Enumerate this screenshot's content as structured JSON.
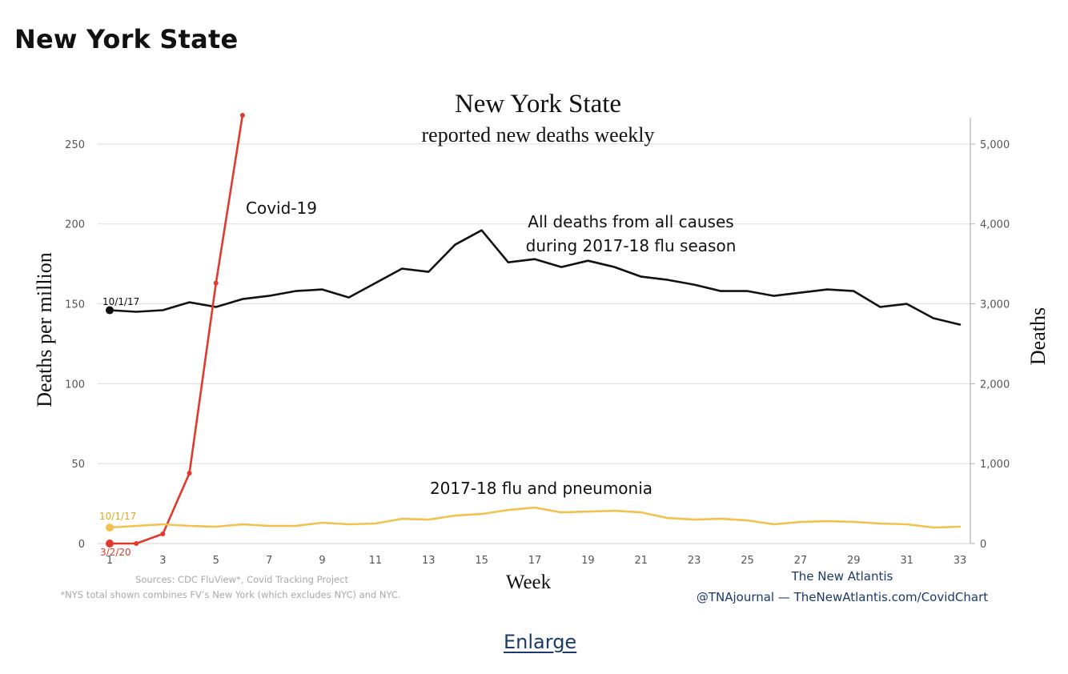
{
  "page": {
    "heading": "New York State",
    "enlarge_link": "Enlarge"
  },
  "chart_data": {
    "type": "line",
    "title": "New York State",
    "subtitle": "reported new deaths weekly",
    "xlabel": "Week",
    "ylabel_left": "Deaths per million",
    "ylabel_right": "Deaths",
    "xticks": [
      1,
      3,
      5,
      7,
      9,
      11,
      13,
      15,
      17,
      19,
      21,
      23,
      25,
      27,
      29,
      31,
      33
    ],
    "xlim": [
      1,
      33
    ],
    "ylim_left": [
      0,
      270
    ],
    "yticks_left": [
      0,
      50,
      100,
      150,
      200,
      250
    ],
    "ylim_right": [
      0,
      5400
    ],
    "yticks_right": [
      {
        "value": 0,
        "label": "0"
      },
      {
        "value": 1000,
        "label": "1,000"
      },
      {
        "value": 2000,
        "label": "2,000"
      },
      {
        "value": 3000,
        "label": "3,000"
      },
      {
        "value": 4000,
        "label": "4,000"
      },
      {
        "value": 5000,
        "label": "5,000"
      }
    ],
    "grid": true,
    "series": [
      {
        "name": "All deaths from all causes during 2017-18 flu season",
        "label_lines": [
          "All deaths from all causes",
          "during 2017-18 flu season"
        ],
        "color": "#111111",
        "start_label": "10/1/17",
        "x": [
          1,
          2,
          3,
          4,
          5,
          6,
          7,
          8,
          9,
          10,
          11,
          12,
          13,
          14,
          15,
          16,
          17,
          18,
          19,
          20,
          21,
          22,
          23,
          24,
          25,
          26,
          27,
          28,
          29,
          30,
          31,
          32,
          33
        ],
        "y": [
          146,
          145,
          146,
          151,
          148,
          153,
          155,
          158,
          159,
          154,
          163,
          172,
          170,
          187,
          196,
          176,
          178,
          173,
          177,
          173,
          167,
          165,
          162,
          158,
          158,
          155,
          157,
          159,
          158,
          148,
          150,
          141,
          137
        ]
      },
      {
        "name": "Covid-19",
        "color": "#e03a2f",
        "start_label": "3/2/20",
        "x": [
          1,
          2,
          3,
          4,
          5,
          6
        ],
        "y": [
          0,
          0,
          6,
          44,
          163,
          268
        ]
      },
      {
        "name": "2017-18 flu and pneumonia",
        "color": "#f2c14e",
        "start_label": "10/1/17",
        "x": [
          1,
          2,
          3,
          4,
          5,
          6,
          7,
          8,
          9,
          10,
          11,
          12,
          13,
          14,
          15,
          16,
          17,
          18,
          19,
          20,
          21,
          22,
          23,
          24,
          25,
          26,
          27,
          28,
          29,
          30,
          31,
          32,
          33
        ],
        "y": [
          10,
          11,
          12,
          11,
          10.5,
          12,
          11,
          11,
          13,
          12,
          12.5,
          15.5,
          15,
          17.5,
          18.5,
          21,
          22.5,
          19.5,
          20,
          20.5,
          19.5,
          16,
          15,
          15.5,
          14.5,
          12,
          13.5,
          14,
          13.5,
          12.5,
          12,
          10,
          10.5
        ]
      }
    ],
    "sources_lines": [
      "Sources: CDC FluView*, Covid Tracking Project",
      "*NYS total shown combines FV’s New York (which excludes NYC) and NYC."
    ],
    "credit_lines": [
      "The New Atlantis",
      "@TNAjournal — TheNewAtlantis.com/CovidChart"
    ]
  },
  "colors": {
    "grid": "#dedede",
    "axis_tick_text": "#555555",
    "credit": "#1a3a6c",
    "footnote": "#a8a8a8"
  }
}
